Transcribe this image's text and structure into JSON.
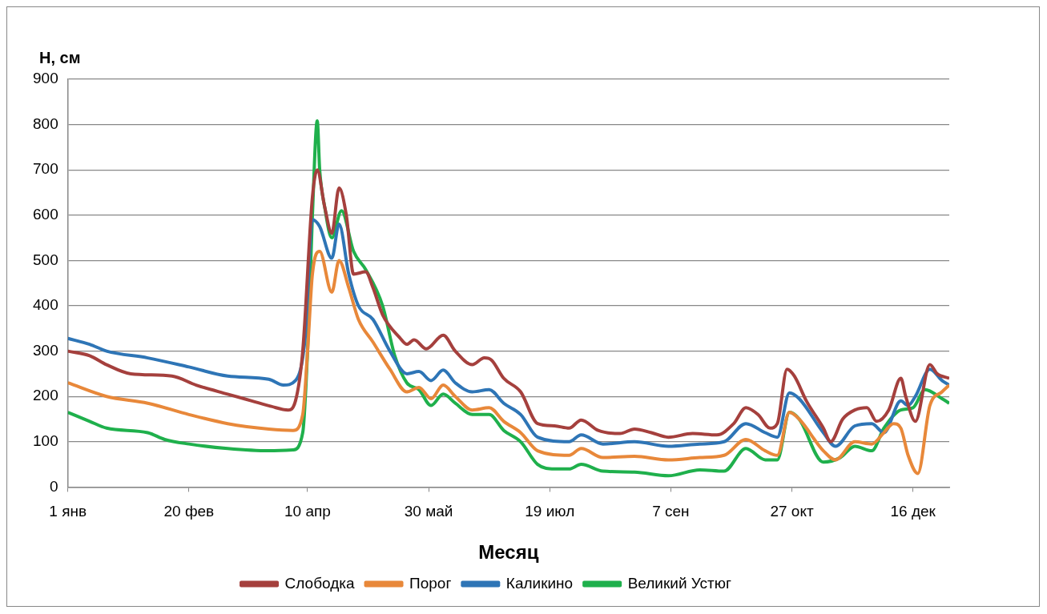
{
  "chart_data": {
    "type": "line",
    "xlabel": "Месяц",
    "ylabel": "H, см",
    "xlim": [
      "--01-01",
      "--12-31"
    ],
    "xticks": [
      {
        "value": "--01-01",
        "label": "1 янв"
      },
      {
        "value": "--02-20",
        "label": "20 фев"
      },
      {
        "value": "--04-10",
        "label": "10 апр"
      },
      {
        "value": "--05-30",
        "label": "30 май"
      },
      {
        "value": "--07-19",
        "label": "19 июл"
      },
      {
        "value": "--09-07",
        "label": "7 сен"
      },
      {
        "value": "--10-27",
        "label": "27 окт"
      },
      {
        "value": "--12-16",
        "label": "16 дек"
      }
    ],
    "ylim": [
      0,
      900
    ],
    "yticks": [
      0,
      100,
      200,
      300,
      400,
      500,
      600,
      700,
      800,
      900
    ],
    "grid": "y",
    "legend": "bottom",
    "line_style": "solid",
    "marker": "none",
    "series": [
      {
        "name": "Слободка",
        "color": "#a5403d",
        "x": [
          "--01-01",
          "--01-10",
          "--01-17",
          "--01-27",
          "--02-13",
          "--02-23",
          "--03-08",
          "--03-18",
          "--03-26",
          "--04-02",
          "--04-05",
          "--04-08",
          "--04-12",
          "--04-14",
          "--04-17",
          "--04-20",
          "--04-23",
          "--04-26",
          "--04-29",
          "--05-04",
          "--05-07",
          "--05-11",
          "--05-18",
          "--05-21",
          "--05-24",
          "--05-29",
          "--06-05",
          "--06-10",
          "--06-17",
          "--06-22",
          "--06-25",
          "--06-30",
          "--07-07",
          "--07-14",
          "--07-21",
          "--07-27",
          "--08-01",
          "--08-08",
          "--08-17",
          "--08-23",
          "--08-30",
          "--09-06",
          "--09-16",
          "--09-26",
          "--10-03",
          "--10-08",
          "--10-13",
          "--10-18",
          "--10-21",
          "--10-25",
          "--10-28",
          "--11-02",
          "--11-09",
          "--11-12",
          "--11-17",
          "--11-22",
          "--11-27",
          "--12-01",
          "--12-06",
          "--12-11",
          "--12-13",
          "--12-17",
          "--12-23",
          "--12-26",
          "--12-31"
        ],
        "values": [
          300,
          290,
          270,
          250,
          245,
          225,
          205,
          190,
          178,
          170,
          190,
          300,
          640,
          700,
          620,
          560,
          660,
          600,
          470,
          475,
          440,
          380,
          330,
          315,
          325,
          305,
          335,
          300,
          270,
          285,
          280,
          240,
          210,
          140,
          135,
          130,
          148,
          125,
          118,
          128,
          120,
          110,
          118,
          115,
          140,
          175,
          160,
          130,
          140,
          260,
          245,
          190,
          130,
          100,
          150,
          170,
          175,
          145,
          170,
          240,
          200,
          145,
          270,
          250,
          240
        ]
      },
      {
        "name": "Порог",
        "color": "#e8883a",
        "x": [
          "--01-01",
          "--01-17",
          "--02-03",
          "--02-20",
          "--03-08",
          "--03-25",
          "--04-04",
          "--04-08",
          "--04-10",
          "--04-12",
          "--04-15",
          "--04-20",
          "--04-23",
          "--04-27",
          "--05-01",
          "--05-07",
          "--05-14",
          "--05-21",
          "--05-26",
          "--05-31",
          "--06-05",
          "--06-10",
          "--06-17",
          "--06-24",
          "--06-30",
          "--07-07",
          "--07-14",
          "--07-27",
          "--08-01",
          "--08-10",
          "--08-23",
          "--09-06",
          "--09-19",
          "--09-29",
          "--10-08",
          "--10-16",
          "--10-21",
          "--10-26",
          "--10-30",
          "--11-09",
          "--11-14",
          "--11-22",
          "--11-29",
          "--12-04",
          "--12-08",
          "--12-11",
          "--12-14",
          "--12-18",
          "--12-23",
          "--12-28",
          "--12-31"
        ],
        "values": [
          230,
          200,
          185,
          160,
          140,
          128,
          125,
          160,
          300,
          470,
          520,
          430,
          500,
          440,
          370,
          320,
          260,
          210,
          220,
          195,
          225,
          200,
          170,
          175,
          145,
          120,
          80,
          70,
          85,
          65,
          68,
          60,
          65,
          70,
          105,
          80,
          70,
          165,
          150,
          80,
          60,
          100,
          95,
          120,
          140,
          130,
          70,
          30,
          180,
          210,
          225
        ]
      },
      {
        "name": "Каликино",
        "color": "#2e75b6",
        "x": [
          "--01-01",
          "--01-10",
          "--01-17",
          "--02-03",
          "--02-20",
          "--03-08",
          "--03-25",
          "--03-31",
          "--04-05",
          "--04-09",
          "--04-12",
          "--04-15",
          "--04-20",
          "--04-23",
          "--04-27",
          "--05-01",
          "--05-07",
          "--05-14",
          "--05-21",
          "--05-26",
          "--05-31",
          "--06-05",
          "--06-10",
          "--06-17",
          "--06-24",
          "--06-30",
          "--07-07",
          "--07-14",
          "--07-27",
          "--08-01",
          "--08-10",
          "--08-23",
          "--09-06",
          "--09-19",
          "--09-29",
          "--10-08",
          "--10-16",
          "--10-21",
          "--10-26",
          "--10-30",
          "--11-09",
          "--11-14",
          "--11-22",
          "--11-29",
          "--12-04",
          "--12-11",
          "--12-14",
          "--12-17",
          "--12-23",
          "--12-28",
          "--12-31"
        ],
        "values": [
          328,
          315,
          300,
          285,
          265,
          245,
          238,
          225,
          235,
          330,
          590,
          575,
          505,
          580,
          470,
          400,
          370,
          300,
          250,
          255,
          235,
          258,
          230,
          210,
          215,
          185,
          160,
          110,
          100,
          115,
          95,
          100,
          90,
          95,
          100,
          140,
          120,
          110,
          208,
          195,
          120,
          90,
          135,
          140,
          120,
          190,
          180,
          200,
          260,
          235,
          225
        ]
      },
      {
        "name": "Великий Устюг",
        "color": "#1fb04c",
        "x": [
          "--01-01",
          "--01-10",
          "--01-17",
          "--02-03",
          "--02-10",
          "--02-20",
          "--03-08",
          "--03-25",
          "--04-04",
          "--04-08",
          "--04-10",
          "--04-12",
          "--04-14",
          "--04-15",
          "--04-17",
          "--04-20",
          "--04-24",
          "--04-29",
          "--05-04",
          "--05-11",
          "--05-16",
          "--05-21",
          "--05-26",
          "--05-31",
          "--06-05",
          "--06-10",
          "--06-17",
          "--06-24",
          "--06-30",
          "--07-07",
          "--07-14",
          "--07-21",
          "--07-27",
          "--08-01",
          "--08-10",
          "--08-23",
          "--09-06",
          "--09-19",
          "--09-29",
          "--10-08",
          "--10-16",
          "--10-21",
          "--10-26",
          "--10-30",
          "--11-09",
          "--11-16",
          "--11-22",
          "--11-29",
          "--12-04",
          "--12-11",
          "--12-16",
          "--12-21",
          "--12-28",
          "--12-31"
        ],
        "values": [
          165,
          145,
          130,
          120,
          105,
          95,
          85,
          80,
          82,
          120,
          300,
          600,
          808,
          700,
          620,
          550,
          610,
          520,
          480,
          400,
          290,
          230,
          215,
          180,
          205,
          185,
          160,
          160,
          125,
          100,
          50,
          40,
          40,
          50,
          35,
          33,
          25,
          38,
          35,
          85,
          60,
          60,
          165,
          150,
          55,
          65,
          90,
          80,
          130,
          170,
          175,
          215,
          195,
          185
        ]
      }
    ]
  }
}
